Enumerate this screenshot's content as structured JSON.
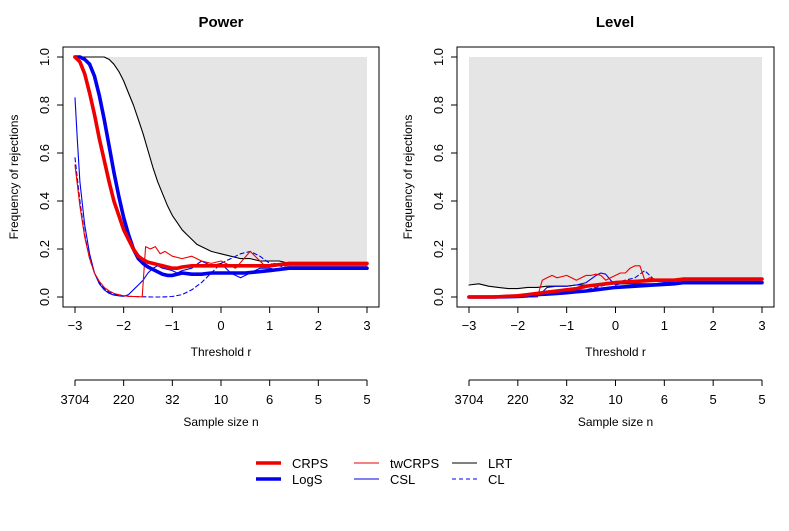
{
  "chart_data": [
    {
      "type": "line",
      "title": "Power",
      "xlabel": "Threshold r",
      "ylabel": "Frequency of rejections",
      "xlim": [
        -3,
        3
      ],
      "ylim": [
        0,
        1
      ],
      "x_ticks": [
        "−3",
        "−2",
        "−1",
        "0",
        "1",
        "2",
        "3"
      ],
      "y_ticks": [
        "0.0",
        "0.2",
        "0.4",
        "0.6",
        "0.8",
        "1.0"
      ],
      "secondary_axis_label": "Sample size n",
      "secondary_ticks": [
        "3704",
        "220",
        "32",
        "10",
        "6",
        "5",
        "5"
      ],
      "shaded_region": "above LRT curve",
      "series": [
        {
          "name": "CRPS",
          "color": "#ee0000",
          "style": "solid-thick",
          "x": [
            -3.0,
            -2.9,
            -2.8,
            -2.7,
            -2.6,
            -2.5,
            -2.4,
            -2.3,
            -2.2,
            -2.1,
            -2.0,
            -1.9,
            -1.8,
            -1.7,
            -1.6,
            -1.5,
            -1.4,
            -1.3,
            -1.2,
            -1.1,
            -1.0,
            -0.9,
            -0.8,
            -0.6,
            -0.4,
            -0.2,
            0.0,
            0.5,
            1.0,
            1.4,
            2.0,
            3.0
          ],
          "y": [
            1.0,
            0.98,
            0.93,
            0.85,
            0.76,
            0.66,
            0.57,
            0.48,
            0.4,
            0.34,
            0.28,
            0.24,
            0.2,
            0.17,
            0.155,
            0.145,
            0.14,
            0.135,
            0.13,
            0.125,
            0.12,
            0.12,
            0.125,
            0.13,
            0.13,
            0.13,
            0.13,
            0.13,
            0.13,
            0.14,
            0.14,
            0.14
          ]
        },
        {
          "name": "LogS",
          "color": "#0000ee",
          "style": "solid-thick",
          "x": [
            -3.0,
            -2.9,
            -2.8,
            -2.7,
            -2.6,
            -2.5,
            -2.4,
            -2.3,
            -2.2,
            -2.1,
            -2.0,
            -1.9,
            -1.8,
            -1.7,
            -1.6,
            -1.5,
            -1.4,
            -1.3,
            -1.2,
            -1.1,
            -1.0,
            -0.9,
            -0.8,
            -0.6,
            -0.4,
            -0.2,
            0.0,
            0.5,
            1.0,
            1.4,
            2.0,
            3.0
          ],
          "y": [
            1.0,
            1.0,
            0.99,
            0.97,
            0.92,
            0.84,
            0.74,
            0.63,
            0.52,
            0.42,
            0.33,
            0.26,
            0.2,
            0.16,
            0.14,
            0.125,
            0.115,
            0.105,
            0.095,
            0.09,
            0.09,
            0.095,
            0.1,
            0.095,
            0.095,
            0.1,
            0.1,
            0.1,
            0.11,
            0.12,
            0.12,
            0.12
          ]
        },
        {
          "name": "twCRPS",
          "color": "#ee0000",
          "style": "solid-thin",
          "x": [
            -3.0,
            -2.9,
            -2.8,
            -2.7,
            -2.6,
            -2.5,
            -2.4,
            -2.3,
            -2.2,
            -2.1,
            -2.0,
            -1.9,
            -1.8,
            -1.7,
            -1.62,
            -1.55,
            -1.45,
            -1.35,
            -1.25,
            -1.15,
            -1.0,
            -0.8,
            -0.6,
            -0.4,
            -0.2,
            0.0,
            0.3,
            0.6,
            0.9,
            1.1,
            1.3,
            1.6,
            2.0,
            3.0
          ],
          "y": [
            0.55,
            0.38,
            0.25,
            0.16,
            0.1,
            0.065,
            0.04,
            0.025,
            0.015,
            0.01,
            0.005,
            0.003,
            0.002,
            0.002,
            0.0,
            0.21,
            0.2,
            0.21,
            0.18,
            0.19,
            0.17,
            0.16,
            0.17,
            0.15,
            0.14,
            0.15,
            0.12,
            0.19,
            0.13,
            0.14,
            0.13,
            0.13,
            0.13,
            0.13
          ]
        },
        {
          "name": "CSL",
          "color": "#0000ee",
          "style": "solid-thin",
          "x": [
            -3.0,
            -2.95,
            -2.9,
            -2.8,
            -2.7,
            -2.6,
            -2.5,
            -2.4,
            -2.3,
            -2.2,
            -2.1,
            -2.0,
            -1.9,
            -1.8,
            -1.7,
            -1.6,
            -1.5,
            -1.4,
            -1.3,
            -1.2,
            -1.1,
            -1.0,
            -0.9,
            -0.8,
            -0.6,
            -0.4,
            -0.2,
            0.0,
            0.2,
            0.4,
            0.6,
            0.8,
            1.0,
            1.2,
            1.4,
            2.0,
            3.0
          ],
          "y": [
            0.83,
            0.65,
            0.48,
            0.3,
            0.18,
            0.1,
            0.055,
            0.03,
            0.015,
            0.008,
            0.005,
            0.003,
            0.01,
            0.03,
            0.05,
            0.07,
            0.1,
            0.12,
            0.13,
            0.12,
            0.115,
            0.11,
            0.1,
            0.11,
            0.12,
            0.15,
            0.13,
            0.14,
            0.1,
            0.08,
            0.1,
            0.12,
            0.12,
            0.11,
            0.12,
            0.12,
            0.12
          ]
        },
        {
          "name": "LRT",
          "color": "#000000",
          "style": "solid-thin",
          "x": [
            -3.0,
            -2.6,
            -2.4,
            -2.3,
            -2.2,
            -2.1,
            -2.0,
            -1.9,
            -1.8,
            -1.7,
            -1.6,
            -1.5,
            -1.4,
            -1.3,
            -1.2,
            -1.1,
            -1.0,
            -0.9,
            -0.8,
            -0.7,
            -0.6,
            -0.5,
            -0.4,
            -0.3,
            -0.2,
            -0.1,
            0.0,
            0.2,
            0.4,
            0.6,
            0.8,
            1.0,
            1.2,
            1.4,
            2.0,
            3.0
          ],
          "y": [
            1.0,
            1.0,
            1.0,
            0.99,
            0.97,
            0.94,
            0.9,
            0.85,
            0.8,
            0.74,
            0.68,
            0.61,
            0.54,
            0.48,
            0.43,
            0.38,
            0.34,
            0.31,
            0.28,
            0.26,
            0.24,
            0.22,
            0.21,
            0.2,
            0.19,
            0.185,
            0.18,
            0.17,
            0.16,
            0.16,
            0.15,
            0.15,
            0.15,
            0.14,
            0.14,
            0.14
          ]
        },
        {
          "name": "CL",
          "color": "#0000ee",
          "style": "dashed-thin",
          "x": [
            -3.0,
            -2.9,
            -2.8,
            -2.7,
            -2.6,
            -2.5,
            -2.4,
            -2.3,
            -2.2,
            -2.1,
            -2.0,
            -1.9,
            -1.8,
            -1.6,
            -1.4,
            -1.2,
            -1.0,
            -0.8,
            -0.6,
            -0.4,
            -0.2,
            0.0,
            0.2,
            0.4,
            0.6,
            0.8,
            1.0,
            1.2,
            1.4,
            2.0,
            3.0
          ],
          "y": [
            0.58,
            0.4,
            0.26,
            0.16,
            0.1,
            0.06,
            0.035,
            0.02,
            0.012,
            0.008,
            0.005,
            0.003,
            0.002,
            0.001,
            0.0,
            0.0,
            0.002,
            0.01,
            0.03,
            0.06,
            0.1,
            0.14,
            0.16,
            0.18,
            0.19,
            0.17,
            0.14,
            0.13,
            0.12,
            0.12,
            0.12
          ]
        }
      ]
    },
    {
      "type": "line",
      "title": "Level",
      "xlabel": "Threshold r",
      "ylabel": "Frequency of rejections",
      "xlim": [
        -3,
        3
      ],
      "ylim": [
        0,
        1
      ],
      "x_ticks": [
        "−3",
        "−2",
        "−1",
        "0",
        "1",
        "2",
        "3"
      ],
      "y_ticks": [
        "0.0",
        "0.2",
        "0.4",
        "0.6",
        "0.8",
        "1.0"
      ],
      "secondary_axis_label": "Sample size n",
      "secondary_ticks": [
        "3704",
        "220",
        "32",
        "10",
        "6",
        "5",
        "5"
      ],
      "shaded_region": "above LRT curve",
      "series": [
        {
          "name": "CRPS",
          "color": "#ee0000",
          "style": "solid-thick",
          "x": [
            -3.0,
            -2.5,
            -2.0,
            -1.8,
            -1.6,
            -1.4,
            -1.2,
            -1.0,
            -0.8,
            -0.6,
            -0.4,
            -0.2,
            0.0,
            0.4,
            0.8,
            1.2,
            1.4,
            2.0,
            3.0
          ],
          "y": [
            0.0,
            0.0,
            0.005,
            0.01,
            0.015,
            0.02,
            0.025,
            0.03,
            0.035,
            0.045,
            0.05,
            0.055,
            0.06,
            0.065,
            0.07,
            0.07,
            0.075,
            0.075,
            0.075
          ]
        },
        {
          "name": "LogS",
          "color": "#0000ee",
          "style": "solid-thick",
          "x": [
            -3.0,
            -2.5,
            -2.0,
            -1.8,
            -1.6,
            -1.4,
            -1.2,
            -1.0,
            -0.8,
            -0.6,
            -0.4,
            -0.2,
            0.0,
            0.4,
            0.8,
            1.2,
            1.4,
            2.0,
            3.0
          ],
          "y": [
            0.0,
            0.0,
            0.002,
            0.005,
            0.01,
            0.012,
            0.015,
            0.018,
            0.022,
            0.025,
            0.03,
            0.035,
            0.04,
            0.045,
            0.05,
            0.055,
            0.06,
            0.06,
            0.06
          ]
        },
        {
          "name": "twCRPS",
          "color": "#ee0000",
          "style": "solid-thin",
          "x": [
            -3.0,
            -2.0,
            -1.7,
            -1.6,
            -1.5,
            -1.4,
            -1.3,
            -1.2,
            -1.1,
            -1.0,
            -0.9,
            -0.8,
            -0.7,
            -0.6,
            -0.5,
            -0.4,
            -0.3,
            -0.2,
            -0.1,
            0.0,
            0.1,
            0.2,
            0.3,
            0.4,
            0.5,
            0.6,
            0.7,
            0.8,
            0.9,
            1.0,
            1.2,
            1.4,
            2.0,
            3.0
          ],
          "y": [
            0.0,
            0.0,
            0.0,
            0.0,
            0.07,
            0.08,
            0.09,
            0.08,
            0.085,
            0.09,
            0.08,
            0.07,
            0.08,
            0.09,
            0.09,
            0.095,
            0.09,
            0.07,
            0.08,
            0.09,
            0.1,
            0.1,
            0.12,
            0.13,
            0.13,
            0.07,
            0.08,
            0.075,
            0.07,
            0.07,
            0.07,
            0.07,
            0.07,
            0.07
          ]
        },
        {
          "name": "CSL",
          "color": "#0000ee",
          "style": "solid-thin",
          "x": [
            -3.0,
            -2.0,
            -1.9,
            -1.8,
            -1.7,
            -1.6,
            -1.5,
            -1.4,
            -1.2,
            -1.0,
            -0.8,
            -0.6,
            -0.4,
            -0.3,
            -0.2,
            -0.1,
            0.0,
            0.2,
            0.4,
            0.6,
            0.8,
            1.0,
            1.2,
            1.4,
            2.0,
            3.0
          ],
          "y": [
            0.0,
            0.0,
            0.005,
            0.005,
            0.01,
            0.015,
            0.02,
            0.04,
            0.045,
            0.045,
            0.05,
            0.06,
            0.09,
            0.1,
            0.095,
            0.07,
            0.05,
            0.06,
            0.05,
            0.05,
            0.055,
            0.06,
            0.06,
            0.06,
            0.06,
            0.06
          ]
        },
        {
          "name": "LRT",
          "color": "#000000",
          "style": "solid-thin",
          "x": [
            -3.0,
            -2.8,
            -2.6,
            -2.4,
            -2.2,
            -2.0,
            -1.8,
            -1.6,
            -1.4,
            -1.2,
            -1.0,
            -0.8,
            -0.6,
            -0.4,
            -0.2,
            0.0,
            0.4,
            0.8,
            1.2,
            1.4,
            2.0,
            3.0
          ],
          "y": [
            0.05,
            0.055,
            0.045,
            0.04,
            0.035,
            0.035,
            0.04,
            0.04,
            0.045,
            0.045,
            0.045,
            0.05,
            0.05,
            0.05,
            0.05,
            0.055,
            0.055,
            0.055,
            0.055,
            0.055,
            0.055,
            0.055
          ]
        },
        {
          "name": "CL",
          "color": "#0000ee",
          "style": "dashed-thin",
          "x": [
            -3.0,
            -2.0,
            -1.6,
            -1.4,
            -1.2,
            -1.0,
            -0.8,
            -0.6,
            -0.4,
            -0.2,
            0.0,
            0.2,
            0.4,
            0.6,
            0.7,
            0.8,
            1.0,
            1.2,
            1.4,
            2.0,
            3.0
          ],
          "y": [
            0.0,
            0.0,
            0.005,
            0.01,
            0.015,
            0.02,
            0.025,
            0.03,
            0.04,
            0.05,
            0.06,
            0.07,
            0.08,
            0.11,
            0.09,
            0.07,
            0.065,
            0.06,
            0.06,
            0.06,
            0.06
          ]
        }
      ]
    }
  ],
  "legend": {
    "items": [
      {
        "name": "CRPS",
        "color": "#ee0000",
        "style": "solid-thick"
      },
      {
        "name": "LogS",
        "color": "#0000ee",
        "style": "solid-thick"
      },
      {
        "name": "twCRPS",
        "color": "#ee0000",
        "style": "solid-thin"
      },
      {
        "name": "CSL",
        "color": "#0000ee",
        "style": "solid-thin"
      },
      {
        "name": "LRT",
        "color": "#000000",
        "style": "solid-thin"
      },
      {
        "name": "CL",
        "color": "#0000ee",
        "style": "dashed-thin"
      }
    ]
  }
}
